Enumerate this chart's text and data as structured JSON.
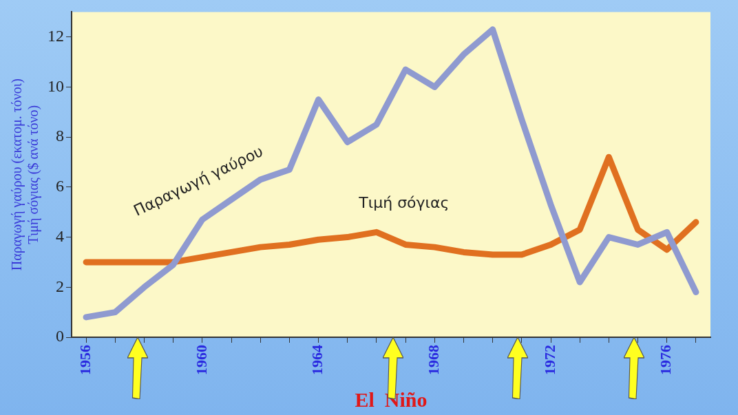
{
  "chart_data": {
    "type": "line",
    "ylabel": "Παραγωγή γαύρου (εκατομ. τόνοι)\nΤιμή σόγιας ($ ανά τόνο)",
    "x": [
      1956,
      1957,
      1958,
      1959,
      1960,
      1961,
      1962,
      1963,
      1964,
      1965,
      1966,
      1967,
      1968,
      1969,
      1970,
      1971,
      1972,
      1973,
      1974,
      1975,
      1976,
      1977
    ],
    "series": [
      {
        "name": "Παραγωγή γαύρου",
        "color": "#8f9ad0",
        "values": [
          0.8,
          1.0,
          2.0,
          2.9,
          4.7,
          5.5,
          6.3,
          6.7,
          9.5,
          7.8,
          8.5,
          10.7,
          10.0,
          11.3,
          12.3,
          8.7,
          5.3,
          2.2,
          4.0,
          3.7,
          4.2,
          1.8
        ]
      },
      {
        "name": "Τιμή σόγιας",
        "color": "#e07020",
        "values": [
          3.0,
          3.0,
          3.0,
          3.0,
          3.2,
          3.4,
          3.6,
          3.7,
          3.9,
          4.0,
          4.2,
          3.7,
          3.6,
          3.4,
          3.3,
          3.3,
          3.7,
          4.3,
          7.2,
          4.3,
          3.5,
          4.6
        ]
      }
    ],
    "xlim": [
      1955.5,
      1977.5
    ],
    "xticks": [
      1956,
      {
        "value": 1957,
        "label": null
      },
      {
        "value": 1958,
        "label": null
      },
      {
        "value": 1959,
        "label": null
      },
      1960,
      {
        "value": 1961,
        "label": null
      },
      {
        "value": 1962,
        "label": null
      },
      {
        "value": 1963,
        "label": null
      },
      1964,
      {
        "value": 1965,
        "label": null
      },
      {
        "value": 1966,
        "label": null
      },
      {
        "value": 1967,
        "label": null
      },
      1968,
      {
        "value": 1969,
        "label": null
      },
      {
        "value": 1970,
        "label": null
      },
      {
        "value": 1971,
        "label": null
      },
      1972,
      {
        "value": 1973,
        "label": null
      },
      {
        "value": 1974,
        "label": null
      },
      {
        "value": 1975,
        "label": null
      },
      1976,
      {
        "value": 1977,
        "label": null
      }
    ],
    "ylim": [
      0,
      13
    ],
    "yticks": [
      0,
      2,
      4,
      6,
      8,
      10,
      12
    ],
    "grid": false,
    "legend": false,
    "marker": "none",
    "line_style": "solid",
    "annotations": [
      "El  Niño"
    ]
  }
}
